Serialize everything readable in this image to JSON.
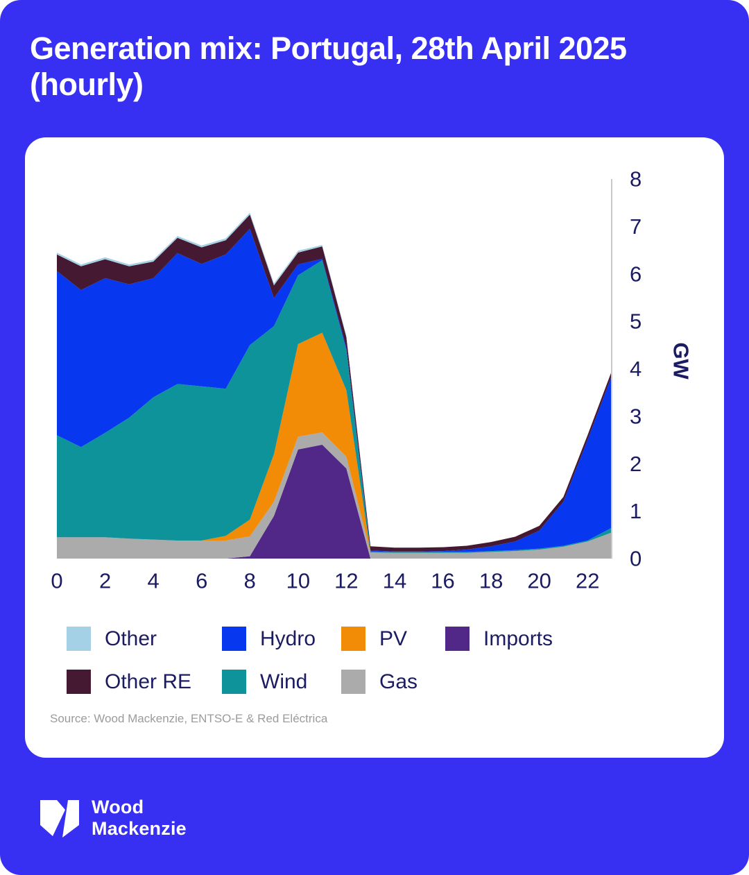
{
  "header": {
    "title_line1": "Generation mix: Portugal, 28th April 2025",
    "title_line2": "(hourly)"
  },
  "colors": {
    "background": "#3730F3",
    "card": "#ffffff",
    "title_text": "#ffffff",
    "tick_text": "#1B1B63",
    "legend_text": "#1B1B63",
    "axis_line": "#C9C9C9",
    "source_text": "#9B9B9B",
    "logo_text": "#ffffff"
  },
  "chart_data": {
    "type": "area",
    "stacked": true,
    "title": "Generation mix: Portugal, 28th April 2025 (hourly)",
    "x": [
      0,
      1,
      2,
      3,
      4,
      5,
      6,
      7,
      8,
      9,
      10,
      11,
      12,
      13,
      14,
      15,
      16,
      17,
      18,
      19,
      20,
      21,
      22,
      23
    ],
    "x_ticks": [
      0,
      2,
      4,
      6,
      8,
      10,
      12,
      14,
      16,
      18,
      20,
      22
    ],
    "y_ticks": [
      0,
      1,
      2,
      3,
      4,
      5,
      6,
      7,
      8
    ],
    "ylim": [
      0,
      8
    ],
    "ylabel": "GW",
    "grid": false,
    "legend_position": "bottom",
    "stack_order_bottom_to_top": [
      "Imports",
      "Gas",
      "PV",
      "Wind",
      "Hydro",
      "Other RE",
      "Other"
    ],
    "series": [
      {
        "name": "Other",
        "color": "#A5D1E6",
        "values": [
          0.04,
          0.04,
          0.04,
          0.04,
          0.04,
          0.04,
          0.04,
          0.04,
          0.04,
          0.04,
          0.04,
          0.03,
          0.03,
          0,
          0,
          0,
          0,
          0,
          0,
          0,
          0,
          0,
          0,
          0
        ]
      },
      {
        "name": "Hydro",
        "color": "#0837F0",
        "values": [
          3.46,
          3.31,
          3.26,
          2.81,
          2.51,
          2.76,
          2.58,
          2.83,
          2.45,
          0.59,
          0.23,
          0.03,
          0.05,
          0.02,
          0.01,
          0.01,
          0.02,
          0.05,
          0.1,
          0.18,
          0.38,
          0.93,
          2.12,
          3.2
        ]
      },
      {
        "name": "PV",
        "color": "#F28B05",
        "values": [
          0,
          0,
          0,
          0,
          0,
          0,
          0,
          0.1,
          0.35,
          1.0,
          1.95,
          2.1,
          1.4,
          0,
          0,
          0,
          0,
          0,
          0,
          0,
          0,
          0,
          0,
          0
        ]
      },
      {
        "name": "Imports",
        "color": "#512788",
        "values": [
          0,
          0,
          0,
          0,
          0,
          0,
          0,
          0,
          0.05,
          0.9,
          2.3,
          2.4,
          1.9,
          0,
          0,
          0,
          0,
          0,
          0,
          0,
          0,
          0,
          0,
          0
        ]
      },
      {
        "name": "Other RE",
        "color": "#451931",
        "values": [
          0.35,
          0.5,
          0.4,
          0.38,
          0.35,
          0.32,
          0.35,
          0.3,
          0.3,
          0.27,
          0.25,
          0.26,
          0.22,
          0.09,
          0.08,
          0.08,
          0.08,
          0.08,
          0.09,
          0.1,
          0.1,
          0.1,
          0.1,
          0.1
        ]
      },
      {
        "name": "Wind",
        "color": "#0F939B",
        "values": [
          2.15,
          1.9,
          2.2,
          2.55,
          3.0,
          3.3,
          3.25,
          3.1,
          3.68,
          2.7,
          1.45,
          1.53,
          0.85,
          0.02,
          0.02,
          0.02,
          0.02,
          0.02,
          0.02,
          0.02,
          0.02,
          0.02,
          0.02,
          0.1
        ]
      },
      {
        "name": "Gas",
        "color": "#ABABAB",
        "values": [
          0.45,
          0.45,
          0.45,
          0.42,
          0.4,
          0.38,
          0.38,
          0.38,
          0.42,
          0.3,
          0.27,
          0.26,
          0.25,
          0.13,
          0.12,
          0.12,
          0.12,
          0.12,
          0.14,
          0.16,
          0.19,
          0.25,
          0.36,
          0.55
        ]
      }
    ],
    "legend_rows": [
      [
        "Other",
        "Hydro",
        "PV",
        "Imports"
      ],
      [
        "Other RE",
        "Wind",
        "Gas"
      ]
    ],
    "source": "Source: Wood Mackenzie, ENTSO-E & Red Eléctrica"
  },
  "logo": {
    "mark": "wood-mackenzie-monogram",
    "line1": "Wood",
    "line2": "Mackenzie"
  }
}
